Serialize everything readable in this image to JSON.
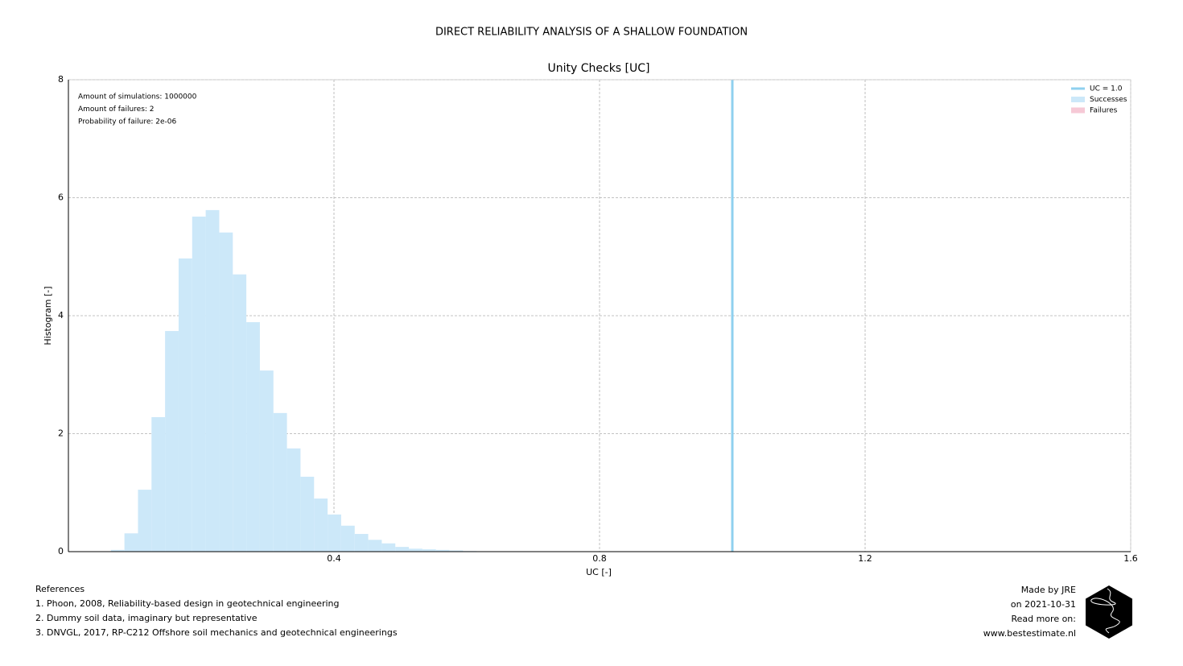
{
  "chart_data": {
    "type": "histogram",
    "title": "DIRECT RELIABILITY ANALYSIS OF A SHALLOW FOUNDATION",
    "subtitle": "Unity Checks [UC]",
    "x_label": "UC [-]",
    "y_label": "Histogram [-]",
    "xlim": [
      0,
      1.6
    ],
    "xticks": [
      0.4,
      0.8,
      1.2,
      1.6
    ],
    "ylim": [
      0,
      8
    ],
    "yticks": [
      0,
      2,
      4,
      6,
      8
    ],
    "grid": true,
    "legend_position": "upper right",
    "bins": [
      0.064,
      0.0844,
      0.1048,
      0.1252,
      0.1456,
      0.166,
      0.1864,
      0.2068,
      0.2272,
      0.2476,
      0.268,
      0.2884,
      0.3088,
      0.3292,
      0.3496,
      0.37,
      0.3904,
      0.4108,
      0.4312,
      0.4516,
      0.472,
      0.4924,
      0.5128,
      0.5332,
      0.5536,
      0.574,
      0.5944,
      0.6148
    ],
    "series": [
      {
        "name": "Successes",
        "color": "#cce8f9",
        "values": [
          0.03,
          0.31,
          1.05,
          2.28,
          3.74,
          4.97,
          5.68,
          5.79,
          5.41,
          4.7,
          3.89,
          3.07,
          2.35,
          1.75,
          1.27,
          0.9,
          0.63,
          0.44,
          0.3,
          0.2,
          0.14,
          0.08,
          0.05,
          0.04,
          0.03,
          0.02,
          0.01
        ]
      }
    ],
    "vline": {
      "name": "UC = 1.0",
      "x": 1.0,
      "color": "#8fd0ef"
    },
    "legend_extra": [
      {
        "name": "Failures",
        "color": "#f6c9d6"
      }
    ],
    "annotations": [
      "Amount of simulations: 1000000",
      "Amount of failures: 2",
      "Probability of failure: 2e-06"
    ]
  },
  "footer": {
    "references_title": "References",
    "references": [
      "1. Phoon, 2008, Reliability-based design in geotechnical engineering",
      "2. Dummy soil data, imaginary but representative",
      "3. DNVGL, 2017, RP-C212 Offshore soil mechanics and geotechnical engineerings"
    ],
    "credits": [
      "Made by JRE",
      "on 2021-10-31",
      "Read more on:",
      "www.bestestimate.nl"
    ]
  }
}
